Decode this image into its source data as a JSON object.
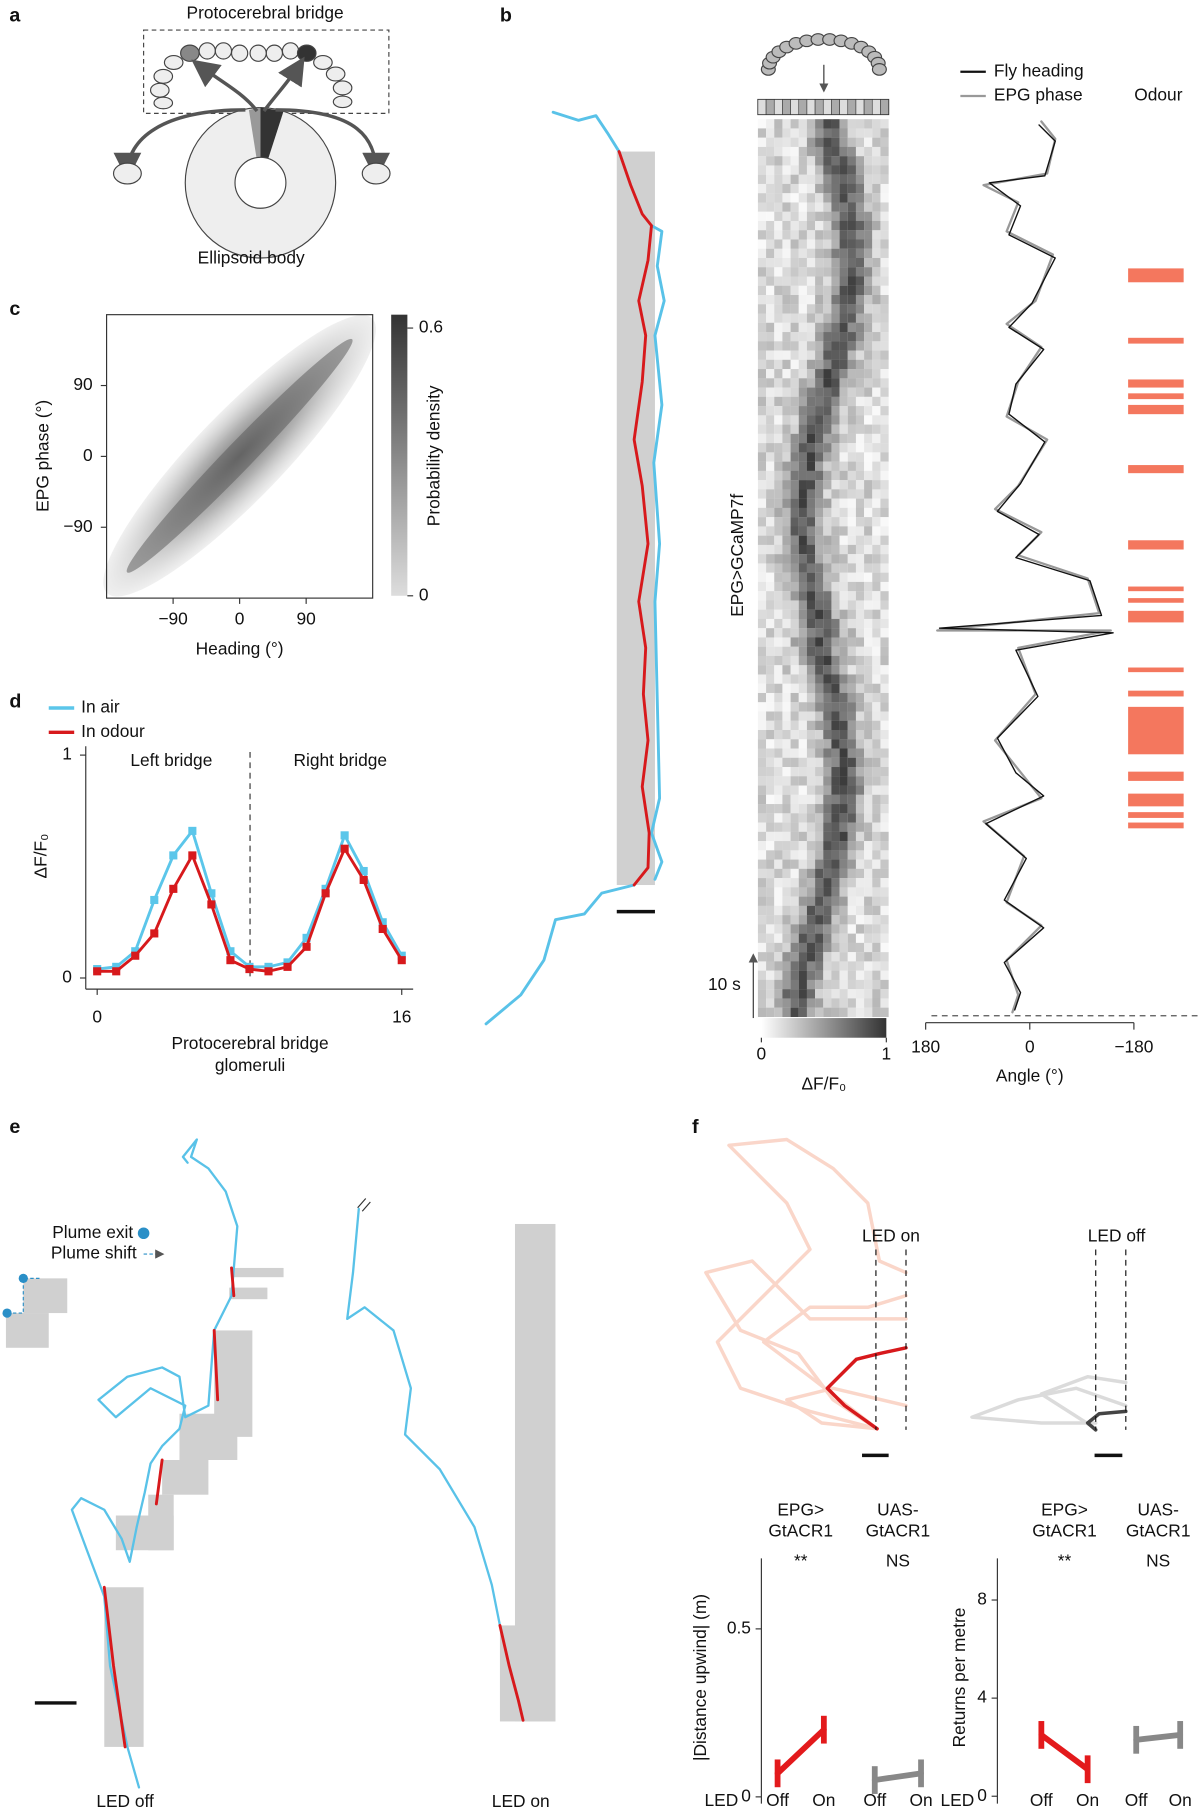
{
  "figure": {
    "a": {
      "label": "a",
      "bridge": "Protocerebral bridge",
      "body": "Ellipsoid body"
    },
    "b": {
      "label": "b",
      "y_label": "EPG>GCaMP7f",
      "time_scale": "10 s",
      "colorbar": {
        "label": "ΔF/F₀",
        "lim": [
          0,
          1
        ],
        "ticks": [
          0,
          1
        ]
      },
      "angle_plot": {
        "legend": [
          {
            "name": "Fly heading",
            "color": "#111111"
          },
          {
            "name": "EPG phase",
            "color": "#999999"
          }
        ],
        "odour_label": "Odour",
        "odour_color": "#f4775e",
        "xlabel": "Angle (°)",
        "xlim": [
          180,
          -180
        ],
        "xticks": [
          180,
          0,
          {
            "value": -180,
            "label": "−180"
          }
        ]
      }
    },
    "c": {
      "label": "c",
      "xlabel": "Heading (°)",
      "ylabel": "EPG phase (°)",
      "xlim": [
        -180,
        180
      ],
      "ylim": [
        -180,
        180
      ],
      "xticks": [
        {
          "value": -90,
          "label": "−90"
        },
        0,
        90
      ],
      "yticks": [
        {
          "value": -90,
          "label": "−90"
        },
        0,
        90
      ],
      "colorbar": {
        "label": "Probability density",
        "lim": [
          0,
          0.63
        ],
        "ticks": [
          0,
          0.6
        ]
      }
    },
    "d": {
      "label": "d",
      "type": "line",
      "xlabel": [
        "Protocerebral bridge",
        "glomeruli"
      ],
      "ylabel": "ΔF/F₀",
      "annotations": [
        "Left bridge",
        "Right bridge"
      ],
      "xlim": [
        -0.6,
        16.6
      ],
      "ylim": [
        -0.05,
        1.04
      ],
      "xticks": [
        0,
        16
      ],
      "yticks": [
        0,
        1
      ],
      "x": [
        0,
        1,
        2,
        3,
        4,
        5,
        6,
        7,
        8,
        9,
        10,
        11,
        12,
        13,
        14,
        15,
        16
      ],
      "series": [
        {
          "name": "In air",
          "color": "#5bc6ea",
          "values": [
            0.04,
            0.05,
            0.12,
            0.35,
            0.55,
            0.66,
            0.38,
            0.12,
            0.05,
            0.05,
            0.07,
            0.18,
            0.4,
            0.64,
            0.48,
            0.25,
            0.1
          ]
        },
        {
          "name": "In odour",
          "color": "#d7191c",
          "values": [
            0.03,
            0.03,
            0.1,
            0.2,
            0.4,
            0.55,
            0.33,
            0.08,
            0.04,
            0.03,
            0.05,
            0.14,
            0.38,
            0.58,
            0.44,
            0.22,
            0.08
          ]
        }
      ]
    },
    "e": {
      "label": "e",
      "legend": [
        "Plume exit",
        "Plume shift"
      ],
      "conditions": [
        "LED off",
        "LED on"
      ]
    },
    "f": {
      "label": "f",
      "led_on": "LED on",
      "led_off": "LED off",
      "x_title": "LED",
      "x_levels": [
        "Off",
        "On"
      ],
      "groups": [
        [
          "EPG>",
          "GtACR1"
        ],
        [
          "UAS-",
          "GtACR1"
        ]
      ],
      "group_colors": [
        "#e31a1c",
        "#888888"
      ],
      "charts": [
        {
          "ylabel": "|Distance upwind| (m)",
          "ylim": [
            -0.02,
            0.71
          ],
          "yticks": [
            0,
            0.5
          ],
          "significance": [
            "**",
            "NS"
          ],
          "means": [
            [
              0.07,
              0.2
            ],
            [
              0.05,
              0.07
            ]
          ]
        },
        {
          "ylabel": "Returns per metre",
          "ylim": [
            -0.3,
            9.7
          ],
          "yticks": [
            0,
            4,
            8
          ],
          "significance": [
            "**",
            "NS"
          ],
          "means": [
            [
              2.5,
              1.1
            ],
            [
              2.3,
              2.5
            ]
          ]
        }
      ]
    }
  }
}
